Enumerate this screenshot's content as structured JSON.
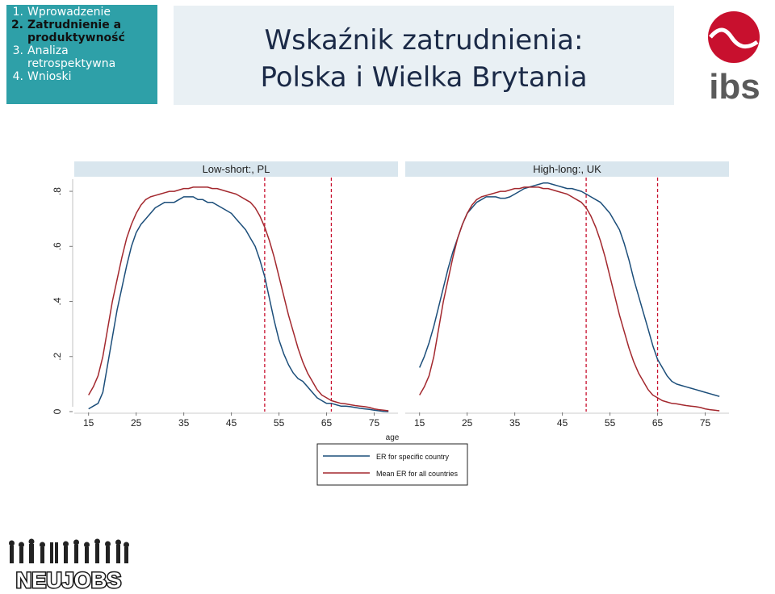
{
  "toc": {
    "items": [
      {
        "num": "1.",
        "label": "Wprowadzenie",
        "active": false
      },
      {
        "num": "2.",
        "label": "Zatrudnienie a produktywność",
        "active": true
      },
      {
        "num": "3.",
        "label": "Analiza retrospektywna",
        "active": false
      },
      {
        "num": "4.",
        "label": "Wnioski",
        "active": false
      }
    ]
  },
  "title": {
    "line1": "Wskaźnik zatrudnienia:",
    "line2": "Polska i Wielka Brytania"
  },
  "logos": {
    "ibs": "ibs",
    "neujobs": "NEUJOBS"
  },
  "colors": {
    "toc_bg": "#2ea0a8",
    "title_bg": "#e9f0f4",
    "specific_series": "#1c4e7a",
    "mean_series": "#a3282e",
    "ref_line": "#c8102e",
    "panel_header": "#d9e6ee",
    "ibs_logo": "#c8102e"
  },
  "chart_data": {
    "type": "line",
    "xlabel": "age",
    "ylabel": "",
    "xlim": [
      12,
      80
    ],
    "ylim": [
      0,
      0.85
    ],
    "xticks": [
      15,
      25,
      35,
      45,
      55,
      65,
      75
    ],
    "yticks": [
      0,
      0.2,
      0.4,
      0.6,
      0.8
    ],
    "ytick_labels": [
      "0",
      ".2",
      ".4",
      ".6",
      ".8"
    ],
    "grid": false,
    "legend_position": "bottom-center",
    "legend": [
      "ER for specific country",
      "Mean ER for all countries"
    ],
    "panels": [
      {
        "title": "Low-short:, PL",
        "ref_lines_x": [
          52,
          66
        ],
        "series": [
          {
            "name": "ER for specific country",
            "x": [
              15,
              16,
              17,
              18,
              19,
              20,
              21,
              22,
              23,
              24,
              25,
              26,
              27,
              28,
              29,
              30,
              31,
              32,
              33,
              34,
              35,
              36,
              37,
              38,
              39,
              40,
              41,
              42,
              43,
              44,
              45,
              46,
              47,
              48,
              49,
              50,
              51,
              52,
              53,
              54,
              55,
              56,
              57,
              58,
              59,
              60,
              61,
              62,
              63,
              64,
              65,
              66,
              67,
              68,
              69,
              70,
              71,
              72,
              73,
              74,
              75,
              76,
              77,
              78
            ],
            "y": [
              0.01,
              0.02,
              0.03,
              0.07,
              0.17,
              0.27,
              0.37,
              0.45,
              0.53,
              0.6,
              0.65,
              0.68,
              0.7,
              0.72,
              0.74,
              0.75,
              0.76,
              0.76,
              0.76,
              0.77,
              0.78,
              0.78,
              0.78,
              0.77,
              0.77,
              0.76,
              0.76,
              0.75,
              0.74,
              0.73,
              0.72,
              0.7,
              0.68,
              0.66,
              0.63,
              0.6,
              0.55,
              0.49,
              0.41,
              0.33,
              0.26,
              0.21,
              0.17,
              0.14,
              0.12,
              0.11,
              0.09,
              0.07,
              0.05,
              0.04,
              0.03,
              0.03,
              0.025,
              0.02,
              0.02,
              0.018,
              0.015,
              0.012,
              0.01,
              0.008,
              0.005,
              0.003,
              0.001,
              0.0
            ]
          },
          {
            "name": "Mean ER for all countries",
            "x": [
              15,
              16,
              17,
              18,
              19,
              20,
              21,
              22,
              23,
              24,
              25,
              26,
              27,
              28,
              29,
              30,
              31,
              32,
              33,
              34,
              35,
              36,
              37,
              38,
              39,
              40,
              41,
              42,
              43,
              44,
              45,
              46,
              47,
              48,
              49,
              50,
              51,
              52,
              53,
              54,
              55,
              56,
              57,
              58,
              59,
              60,
              61,
              62,
              63,
              64,
              65,
              66,
              67,
              68,
              69,
              70,
              71,
              72,
              73,
              74,
              75,
              76,
              77,
              78
            ],
            "y": [
              0.06,
              0.09,
              0.13,
              0.2,
              0.3,
              0.4,
              0.48,
              0.56,
              0.63,
              0.68,
              0.72,
              0.75,
              0.77,
              0.78,
              0.785,
              0.79,
              0.795,
              0.8,
              0.8,
              0.805,
              0.81,
              0.81,
              0.815,
              0.815,
              0.815,
              0.815,
              0.81,
              0.81,
              0.805,
              0.8,
              0.795,
              0.79,
              0.78,
              0.77,
              0.76,
              0.74,
              0.71,
              0.67,
              0.62,
              0.56,
              0.49,
              0.42,
              0.35,
              0.29,
              0.23,
              0.18,
              0.14,
              0.11,
              0.08,
              0.06,
              0.05,
              0.04,
              0.035,
              0.03,
              0.028,
              0.025,
              0.022,
              0.02,
              0.018,
              0.015,
              0.01,
              0.007,
              0.005,
              0.003
            ]
          }
        ]
      },
      {
        "title": "High-long:, UK",
        "ref_lines_x": [
          50,
          65
        ],
        "series": [
          {
            "name": "ER for specific country",
            "x": [
              15,
              16,
              17,
              18,
              19,
              20,
              21,
              22,
              23,
              24,
              25,
              26,
              27,
              28,
              29,
              30,
              31,
              32,
              33,
              34,
              35,
              36,
              37,
              38,
              39,
              40,
              41,
              42,
              43,
              44,
              45,
              46,
              47,
              48,
              49,
              50,
              51,
              52,
              53,
              54,
              55,
              56,
              57,
              58,
              59,
              60,
              61,
              62,
              63,
              64,
              65,
              66,
              67,
              68,
              69,
              70,
              71,
              72,
              73,
              74,
              75,
              76,
              77,
              78
            ],
            "y": [
              0.16,
              0.2,
              0.25,
              0.31,
              0.38,
              0.45,
              0.52,
              0.58,
              0.63,
              0.68,
              0.72,
              0.74,
              0.76,
              0.77,
              0.78,
              0.78,
              0.78,
              0.775,
              0.775,
              0.78,
              0.79,
              0.8,
              0.81,
              0.815,
              0.82,
              0.825,
              0.83,
              0.83,
              0.825,
              0.82,
              0.815,
              0.81,
              0.81,
              0.805,
              0.8,
              0.79,
              0.78,
              0.77,
              0.76,
              0.74,
              0.72,
              0.69,
              0.66,
              0.61,
              0.55,
              0.48,
              0.42,
              0.36,
              0.3,
              0.24,
              0.19,
              0.16,
              0.13,
              0.11,
              0.1,
              0.095,
              0.09,
              0.085,
              0.08,
              0.075,
              0.07,
              0.065,
              0.06,
              0.055
            ]
          },
          {
            "name": "Mean ER for all countries",
            "x": [
              15,
              16,
              17,
              18,
              19,
              20,
              21,
              22,
              23,
              24,
              25,
              26,
              27,
              28,
              29,
              30,
              31,
              32,
              33,
              34,
              35,
              36,
              37,
              38,
              39,
              40,
              41,
              42,
              43,
              44,
              45,
              46,
              47,
              48,
              49,
              50,
              51,
              52,
              53,
              54,
              55,
              56,
              57,
              58,
              59,
              60,
              61,
              62,
              63,
              64,
              65,
              66,
              67,
              68,
              69,
              70,
              71,
              72,
              73,
              74,
              75,
              76,
              77,
              78
            ],
            "y": [
              0.06,
              0.09,
              0.13,
              0.2,
              0.3,
              0.4,
              0.48,
              0.56,
              0.63,
              0.68,
              0.72,
              0.75,
              0.77,
              0.78,
              0.785,
              0.79,
              0.795,
              0.8,
              0.8,
              0.805,
              0.81,
              0.81,
              0.815,
              0.815,
              0.815,
              0.815,
              0.81,
              0.81,
              0.805,
              0.8,
              0.795,
              0.79,
              0.78,
              0.77,
              0.76,
              0.74,
              0.71,
              0.67,
              0.62,
              0.56,
              0.49,
              0.42,
              0.35,
              0.29,
              0.23,
              0.18,
              0.14,
              0.11,
              0.08,
              0.06,
              0.05,
              0.04,
              0.035,
              0.03,
              0.028,
              0.025,
              0.022,
              0.02,
              0.018,
              0.015,
              0.01,
              0.007,
              0.005,
              0.003
            ]
          }
        ]
      }
    ]
  }
}
